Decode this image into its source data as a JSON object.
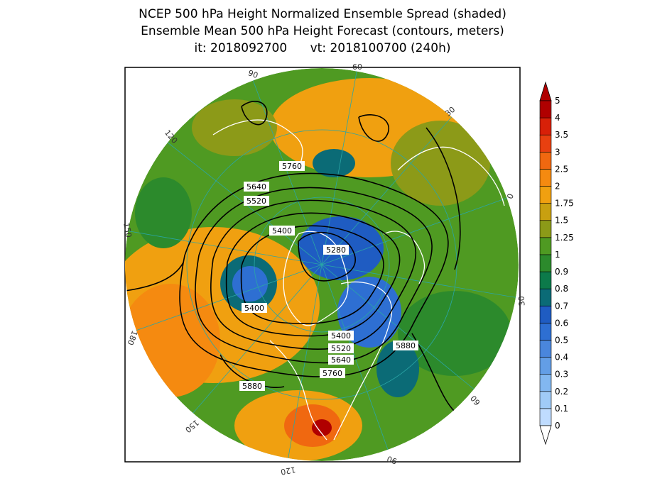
{
  "title": {
    "line1": "NCEP 500 hPa Height Normalized Ensemble Spread (shaded)",
    "line2": "Ensemble Mean 500 hPa Height Forecast (contours, meters)",
    "line3": "it: 2018092700      vt: 2018100700 (240h)"
  },
  "map": {
    "projection": "north-polar-stereographic",
    "longitude_labels": [
      "60",
      "30",
      "0",
      "30",
      "60",
      "90",
      "120",
      "150",
      "180",
      "150",
      "120",
      "90"
    ],
    "contour_labels": [
      "5760",
      "5640",
      "5520",
      "5400",
      "5280",
      "5400",
      "5400",
      "5520",
      "5640",
      "5760",
      "5880",
      "5880"
    ]
  },
  "colorbar": {
    "levels": [
      "0",
      "0.1",
      "0.2",
      "0.3",
      "0.4",
      "0.5",
      "0.6",
      "0.7",
      "0.8",
      "0.9",
      "1",
      "1.25",
      "1.5",
      "1.75",
      "2",
      "2.5",
      "3",
      "3.5",
      "4",
      "5"
    ],
    "colors": [
      "#bfdcff",
      "#a0cbf7",
      "#82b7f0",
      "#639ee6",
      "#4a86dc",
      "#2e6fd2",
      "#1f5cc2",
      "#0b6b76",
      "#0c7a4a",
      "#2c8a2c",
      "#4f9a22",
      "#8c9a18",
      "#c8a010",
      "#f0a010",
      "#f58a10",
      "#f06810",
      "#e84010",
      "#d82008",
      "#b00000"
    ],
    "top_color": "#b00000",
    "bottom_color": "#ffffff"
  }
}
